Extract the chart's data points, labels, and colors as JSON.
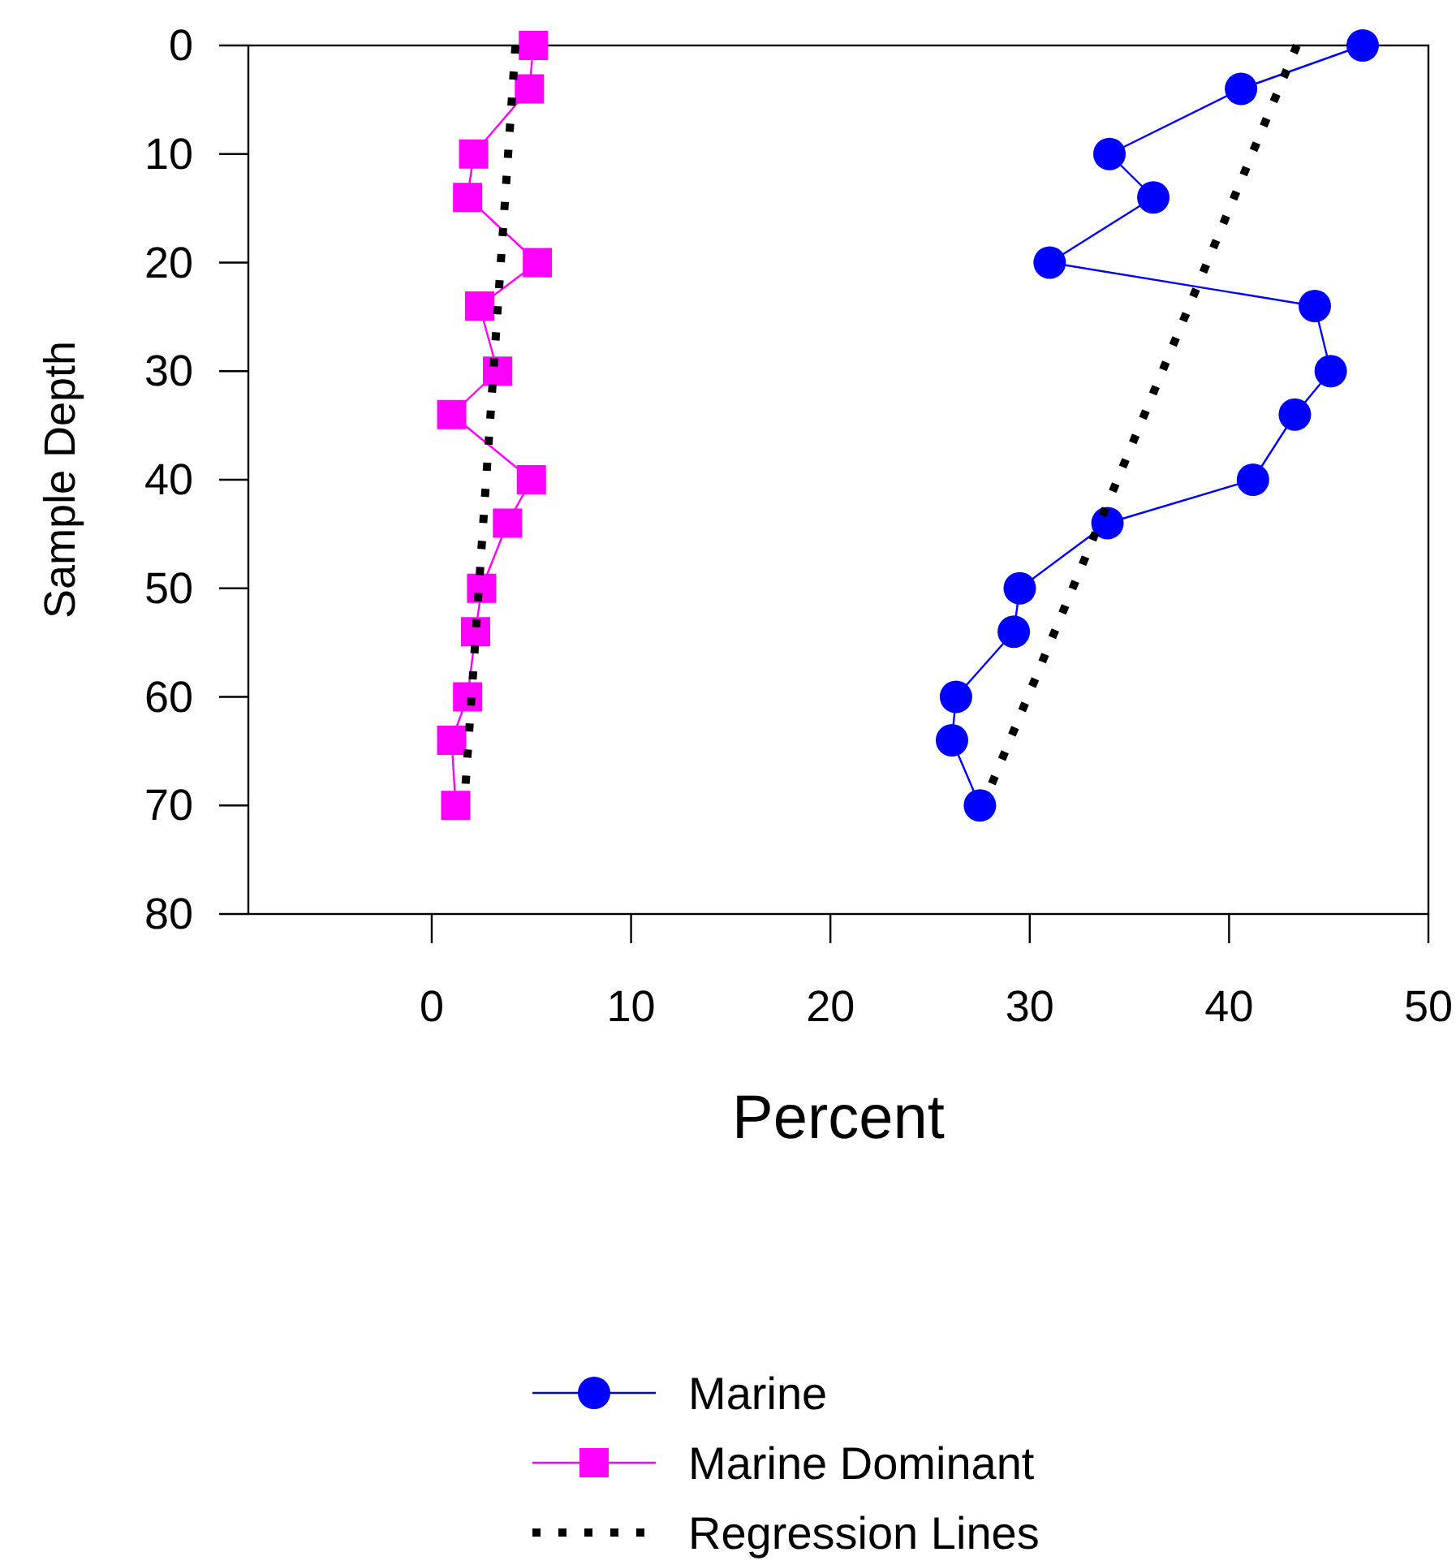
{
  "chart_data": {
    "type": "line",
    "xlabel": "Percent",
    "ylabel": "Sample Depth",
    "xlim": [
      -9.2,
      50
    ],
    "xticks": [
      0,
      10,
      20,
      30,
      40,
      50
    ],
    "ylim": [
      80,
      0
    ],
    "yticks": [
      0,
      10,
      20,
      30,
      40,
      50,
      60,
      70,
      80
    ],
    "grid": false,
    "legend": "bottom",
    "series": [
      {
        "name": "Marine",
        "color": "#0000ff",
        "marker": "circle",
        "line_style": "solid",
        "x": [
          46.7,
          40.6,
          34.0,
          36.2,
          31.0,
          44.3,
          45.1,
          43.3,
          41.2,
          33.9,
          29.5,
          29.2,
          26.3,
          26.1,
          27.5
        ],
        "values": [
          0,
          4,
          10,
          14,
          20,
          24,
          30,
          34,
          40,
          44,
          50,
          54,
          60,
          64,
          70
        ]
      },
      {
        "name": "Marine Dominant",
        "color": "#ff00ff",
        "marker": "square",
        "line_style": "solid",
        "x": [
          5.1,
          4.9,
          2.1,
          1.8,
          5.3,
          2.4,
          3.3,
          1.0,
          5.0,
          3.8,
          2.5,
          2.2,
          1.8,
          1.0,
          1.2
        ],
        "values": [
          0,
          4,
          10,
          14,
          20,
          24,
          30,
          34,
          40,
          44,
          50,
          54,
          60,
          64,
          70
        ]
      },
      {
        "name": "Regression Lines",
        "color": "#000000",
        "marker": "none",
        "line_style": "dotted",
        "x": [
          43.4,
          28.1
        ],
        "values": [
          0,
          68
        ]
      },
      {
        "color": "#000000",
        "marker": "none",
        "line_style": "dotted",
        "x": [
          4.2,
          1.7
        ],
        "values": [
          0,
          68
        ]
      }
    ]
  }
}
